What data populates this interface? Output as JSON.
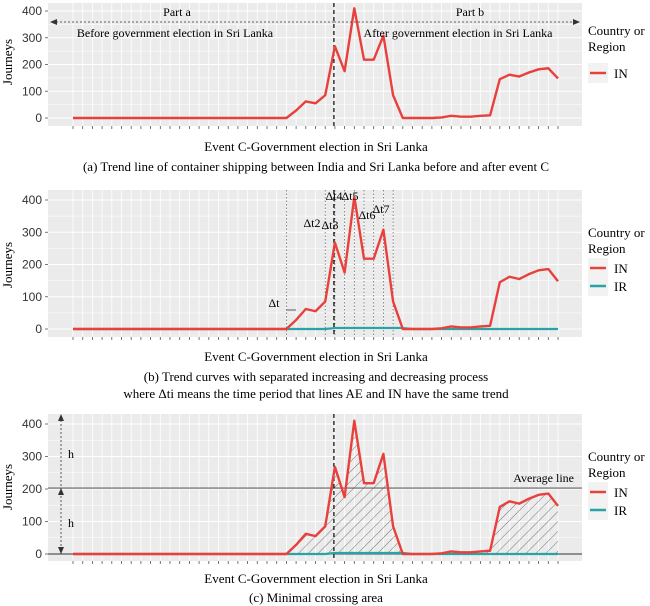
{
  "chart_data": [
    {
      "type": "line",
      "ylabel": "Journeys",
      "xlabel": "Event C-Government election in Sri Lanka",
      "caption": "(a) Trend line of container shipping between India and Sri Lanka before and after event C",
      "yticks": [
        0,
        100,
        200,
        300,
        400
      ],
      "ylim": [
        0,
        410
      ],
      "legend": {
        "title_line1": "Country or",
        "title_line2": "Region",
        "entries": [
          "IN"
        ]
      },
      "annotations": {
        "part_a": "Part a",
        "part_b": "Part b",
        "before": "Before government election in Sri Lanka",
        "after": "After government election in Sri Lanka"
      },
      "series": [
        {
          "name": "IN",
          "color": "#e8403d",
          "values": [
            0,
            0,
            0,
            0,
            0,
            0,
            0,
            0,
            0,
            0,
            0,
            0,
            0,
            0,
            0,
            0,
            0,
            0,
            0,
            0,
            0,
            0,
            0,
            28,
            62,
            55,
            85,
            268,
            175,
            410,
            218,
            218,
            308,
            85,
            0,
            0,
            0,
            0,
            2,
            8,
            5,
            5,
            8,
            10,
            145,
            162,
            155,
            170,
            182,
            186,
            148
          ]
        }
      ]
    },
    {
      "type": "line",
      "ylabel": "Journeys",
      "xlabel": "Event C-Government election in Sri Lanka",
      "caption_line1": "(b) Trend curves with separated increasing and decreasing process",
      "caption_line2": "where Δti means the time period that lines AE and IN have the same trend",
      "yticks": [
        0,
        100,
        200,
        300,
        400
      ],
      "ylim": [
        0,
        410
      ],
      "legend": {
        "title_line1": "Country or",
        "title_line2": "Region",
        "entries": [
          "IN",
          "IR"
        ]
      },
      "annotations": {
        "dt": "Δt",
        "dt2": "Δt2",
        "dt3": "Δt3",
        "dt4": "Δt4",
        "dt5": "Δt5",
        "dt6": "Δt6",
        "dt7": "Δt7"
      },
      "series": [
        {
          "name": "IN",
          "color": "#e8403d",
          "values": [
            0,
            0,
            0,
            0,
            0,
            0,
            0,
            0,
            0,
            0,
            0,
            0,
            0,
            0,
            0,
            0,
            0,
            0,
            0,
            0,
            0,
            0,
            0,
            28,
            62,
            55,
            85,
            268,
            175,
            410,
            218,
            218,
            308,
            85,
            0,
            0,
            0,
            0,
            2,
            8,
            5,
            5,
            8,
            10,
            145,
            162,
            155,
            170,
            182,
            186,
            148
          ]
        },
        {
          "name": "IR",
          "color": "#2aa3a6",
          "values": [
            0,
            0,
            0,
            0,
            0,
            0,
            0,
            0,
            0,
            0,
            0,
            0,
            0,
            0,
            0,
            0,
            0,
            0,
            0,
            0,
            0,
            0,
            0,
            0,
            0,
            0,
            0,
            3,
            3,
            3,
            3,
            3,
            3,
            3,
            3,
            0,
            0,
            0,
            0,
            0,
            0,
            0,
            0,
            0,
            0,
            0,
            0,
            0,
            0,
            0,
            0
          ]
        }
      ]
    },
    {
      "type": "line",
      "ylabel": "Journeys",
      "xlabel": "Event C-Government election in Sri Lanka",
      "caption": "(c) Minimal crossing area",
      "yticks": [
        0,
        100,
        200,
        300,
        400
      ],
      "ylim": [
        0,
        410
      ],
      "average_line": 203,
      "legend": {
        "title_line1": "Country or",
        "title_line2": "Region",
        "entries": [
          "IN",
          "IR"
        ]
      },
      "annotations": {
        "h_upper": "h",
        "h_lower": "h",
        "average": "Average line"
      },
      "series": [
        {
          "name": "IN",
          "color": "#e8403d",
          "values": [
            0,
            0,
            0,
            0,
            0,
            0,
            0,
            0,
            0,
            0,
            0,
            0,
            0,
            0,
            0,
            0,
            0,
            0,
            0,
            0,
            0,
            0,
            0,
            28,
            62,
            55,
            85,
            268,
            175,
            410,
            218,
            218,
            308,
            85,
            0,
            0,
            0,
            0,
            2,
            8,
            5,
            5,
            8,
            10,
            145,
            162,
            155,
            170,
            182,
            186,
            148
          ]
        },
        {
          "name": "IR",
          "color": "#2aa3a6",
          "values": [
            0,
            0,
            0,
            0,
            0,
            0,
            0,
            0,
            0,
            0,
            0,
            0,
            0,
            0,
            0,
            0,
            0,
            0,
            0,
            0,
            0,
            0,
            0,
            0,
            0,
            0,
            0,
            3,
            3,
            3,
            3,
            3,
            3,
            3,
            3,
            0,
            0,
            0,
            0,
            0,
            0,
            0,
            0,
            0,
            0,
            0,
            0,
            0,
            0,
            0,
            0
          ]
        }
      ]
    }
  ]
}
